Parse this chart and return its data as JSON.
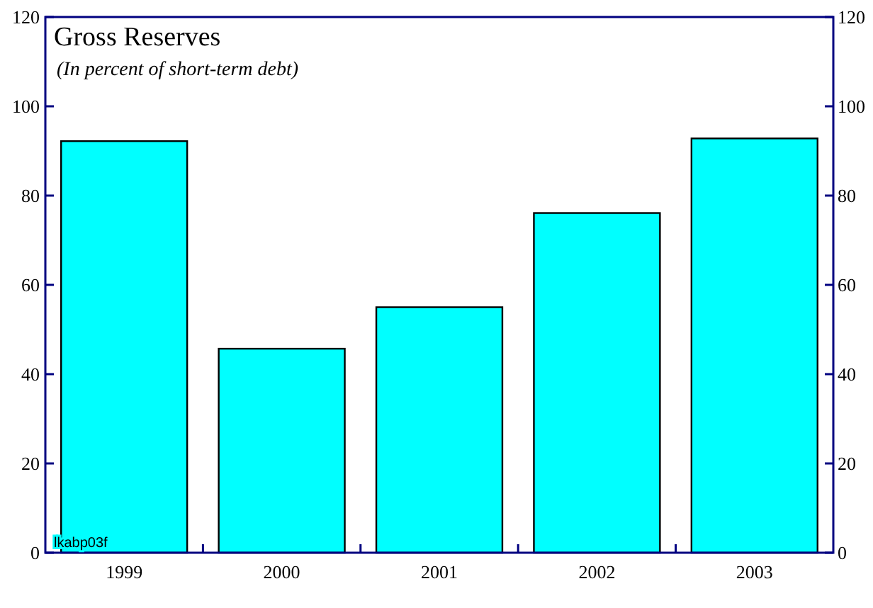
{
  "chart_data": {
    "type": "bar",
    "title": "Gross Reserves",
    "subtitle": "(In percent of short-term debt)",
    "categories": [
      "1999",
      "2000",
      "2001",
      "2002",
      "2003"
    ],
    "values": [
      92.2,
      45.7,
      55,
      76.1,
      92.8
    ],
    "color": "#00ffff",
    "ylim": [
      0,
      120
    ],
    "yticks": [
      0,
      20,
      40,
      60,
      80,
      100,
      120
    ],
    "y2lim": [
      0,
      120
    ],
    "y2ticks": [
      0,
      20,
      40,
      60,
      80,
      100,
      120
    ],
    "annotations": [
      "lkabp03f"
    ],
    "grid": false
  }
}
